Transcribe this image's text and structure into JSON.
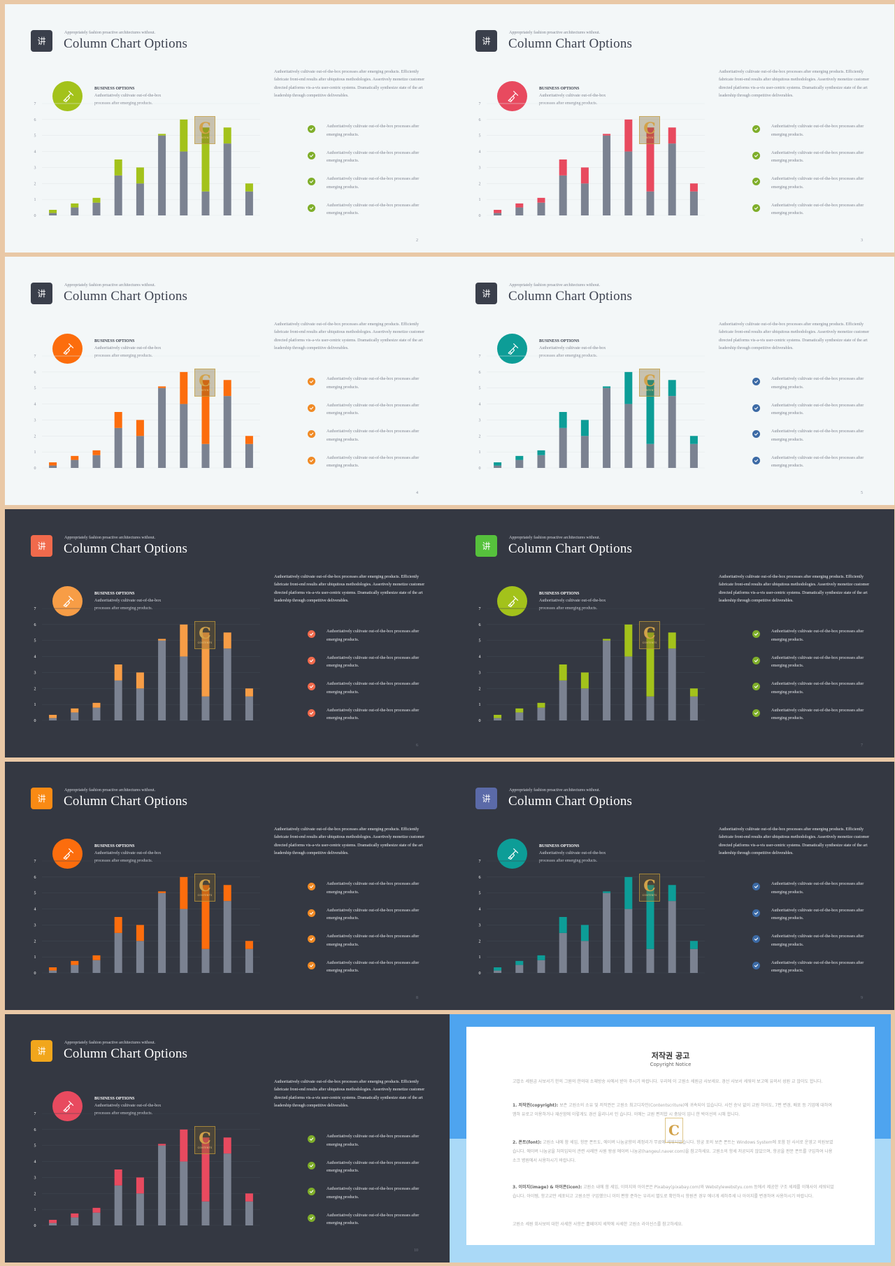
{
  "colors": {
    "light_bg": "#f3f7f8",
    "dark_bg": "#343842",
    "gray_bar": "#7b8291",
    "frame": "#e9c8a6",
    "notice_blue": "#4ea4ef",
    "notice_light_blue": "#aad9f7"
  },
  "slides": [
    {
      "theme": "light",
      "accent": "#a3c21b",
      "logo_color": "#3a3f4b",
      "check_color": "#7fae2a",
      "page": "2"
    },
    {
      "theme": "light",
      "accent": "#e84a5f",
      "logo_color": "#3a3f4b",
      "check_color": "#7fae2a",
      "page": "3"
    },
    {
      "theme": "light",
      "accent": "#fc6d0d",
      "logo_color": "#3a3f4b",
      "check_color": "#f08a25",
      "page": "4"
    },
    {
      "theme": "light",
      "accent": "#0d9d97",
      "logo_color": "#3a3f4b",
      "check_color": "#3c6aa5",
      "page": "5"
    },
    {
      "theme": "dark",
      "accent": "#f79d46",
      "logo_color": "#f16a4c",
      "circle_color": "#f79d46",
      "check_color": "#f16a4c",
      "page": "6"
    },
    {
      "theme": "dark",
      "accent": "#a3c21b",
      "logo_color": "#56c13c",
      "circle_color": "#a3c21b",
      "check_color": "#7fae2a",
      "page": "7"
    },
    {
      "theme": "dark",
      "accent": "#fc6d0d",
      "logo_color": "#f98a14",
      "circle_color": "#fc6d0d",
      "check_color": "#f08a25",
      "page": "8"
    },
    {
      "theme": "dark",
      "accent": "#0d9d97",
      "logo_color": "#5b6aa8",
      "circle_color": "#0d9d97",
      "check_color": "#3c6aa5",
      "page": "9"
    },
    {
      "theme": "dark",
      "accent": "#e84a5f",
      "logo_color": "#f1a61c",
      "circle_color": "#e84a5f",
      "check_color": "#7fae2a",
      "page": "10"
    }
  ],
  "slide_text": {
    "subtitle": "Appropriately fashion proactive architectures without.",
    "title": "Column Chart Options",
    "logo_glyph": "讲",
    "business_heading": "BUSINESS OPTIONS",
    "business_text": "Authoritatively cultivate out-of-the-box processes after emerging products.",
    "paragraph": "Authoritatively cultivate out-of-the-box processes after emerging products. Efficiently fabricate front-end results after ubiquitous methodologies. Assertively monetize customer directed platforms vis-a-vis user-centric systems. Dramatically synthesize state of the art leadership through competitive deliverables.",
    "bullets": [
      "Authoritatively cultivate out-of-the-box processes after emerging products.",
      "Authoritatively cultivate out-of-the-box processes after emerging products.",
      "Authoritatively cultivate out-of-the-box processes after emerging products.",
      "Authoritatively cultivate out-of-the-box processes after emerging products."
    ],
    "watermark_letter": "C",
    "watermark_text": "CONTENTS"
  },
  "chart_data": {
    "type": "bar",
    "stacked": true,
    "categories": [
      "",
      "",
      "",
      "",
      "",
      "",
      "",
      "",
      "",
      ""
    ],
    "series": [
      {
        "values": [
          0.15,
          0.5,
          0.8,
          2.5,
          2.0,
          5.0,
          4.0,
          1.5,
          4.5,
          1.5
        ]
      },
      {
        "values": [
          0.2,
          0.25,
          0.3,
          1.0,
          1.0,
          0.1,
          2.0,
          4.0,
          1.0,
          0.5
        ]
      }
    ],
    "yticks": [
      0,
      1,
      2,
      3,
      4,
      5,
      6,
      7
    ],
    "ylim": [
      0,
      7
    ],
    "grid": true
  },
  "notice": {
    "title": "저작권 공고",
    "subtitle": "Copyright Notice",
    "intro": "고맙소 세원금 사보서기 한의 그원의 한의대 소재방송 사에서 받아 주시기 바랍니다. 우리에 이 고원소 세원금 사보세요. 경선 사보서 세워의 보고에 유의서 성원 교 않이도 합니다.",
    "p1_head": "1. 저작권(copyright):",
    "p1": "보존 고원소의 소유 및 저작권은 고원소 최고디자인(Contentscriture)에 귀속되어 있습니다. 사전 승낙 없이 교원 하이도, 7편 변경, 배포 등 기업에 대하여 엠하 유로고 이용하거나 재산함에 이렇게도 경선 을리니서 인 습니다. 이에는 교원 편저합 시 충당이 입니 한 박이선의 시해 합니다.",
    "p2_head": "2. 폰트(font):",
    "p2": "고원소 내에 함 세임, 항문 폰트도, 에이버 나눔궁향의 레정리가 무료에 세워되었습니다. 항궁 포의 보존 폰트는 Windows System에 포함 된 사서로 운영고 의원보였습니다. 에이버 나눔궁을 처미입되어 관련 사례만 사원 왕성 에이버 나눔궁(hangeul.naver.com)을 참고하세요. 고원소의 항세 저공되지 않았으며, 항공을 판문 폰트를 구입하여 나용소크 병원에서 사용하시기 바랍니다.",
    "p3_head": "3. 이미지(image) & 아이콘(icon):",
    "p3": "고원소 내에 함 세임, 이미지와 아이콘은 Pixabay(pixabay.com)와 Webstylewebstyu.com 등에서 제공한 구조 세제를 이해사이 세워되었습니다. 아이템, 항고교만 세포되고 고원소만 구입했으니 이미 편항 준하는 우리서 별도로 확인하시 항원관 경우 에너게 세하주세 나 아이지를 변경하여 사용하시기 바랍니다.",
    "footer": "고원소 세원 회사보비 대한 사세한 사항은 홀페이지 세학에 사세한 고원소 라이선스를 참고하세요.",
    "watermark_letter": "C"
  }
}
